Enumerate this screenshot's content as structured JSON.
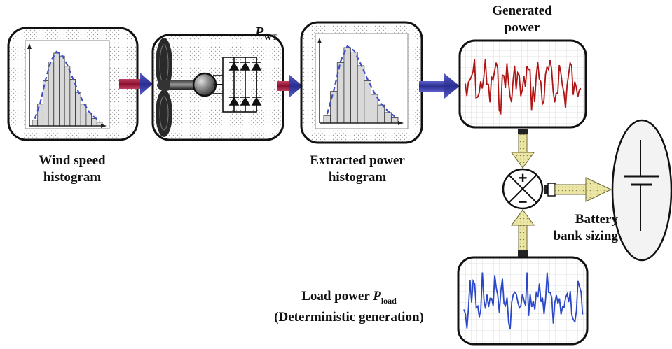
{
  "labels": {
    "wind_speed_line1": "Wind speed",
    "wind_speed_line2": "histogram",
    "p_wt_symbol": "P",
    "p_wt_subscript": "WT",
    "extracted_line1": "Extracted power",
    "extracted_line2": "histogram",
    "generated_line1": "Generated",
    "generated_line2": "power",
    "battery_line1": "Battery",
    "battery_line2": "bank sizing",
    "load_prefix": "Load power ",
    "load_symbol": "P",
    "load_subscript": "load",
    "load_line2": "(Deterministic generation)",
    "sum_plus": "+",
    "sum_minus": "−"
  },
  "colors": {
    "arrow_blue": "#3b3fa0",
    "arrow_red": "#b02a4a",
    "generated_trace": "#b01515",
    "load_trace": "#2b48c8",
    "histogram_envelope": "#4050c8",
    "flow_arrow_yellow": "#e8e09a"
  },
  "histograms": {
    "wind_speed_bars": [
      0.08,
      0.3,
      0.62,
      0.88,
      1.0,
      0.96,
      0.82,
      0.64,
      0.46,
      0.3,
      0.18,
      0.1,
      0.05
    ],
    "extracted_power_bars": [
      0.1,
      0.42,
      0.8,
      1.0,
      0.94,
      0.76,
      0.56,
      0.38,
      0.24,
      0.14,
      0.07
    ]
  }
}
